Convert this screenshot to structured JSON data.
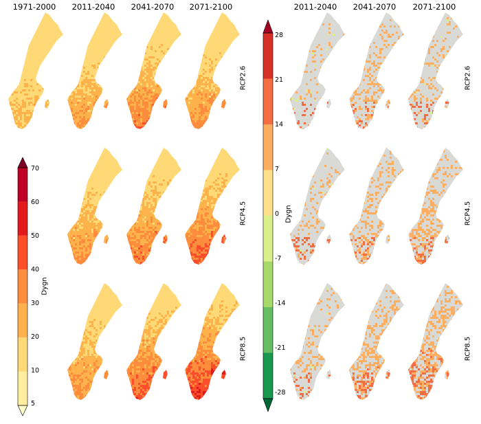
{
  "left_panel": {
    "column_titles": [
      "1971-2000",
      "2011-2040",
      "2041-2070",
      "2071-2100"
    ],
    "colorbar": {
      "label": "Dygn",
      "ticks": [
        "70",
        "60",
        "50",
        "40",
        "30",
        "20",
        "10",
        "5"
      ],
      "colors": [
        "#ffffcc",
        "#ffeda0",
        "#fed976",
        "#feb24c",
        "#fd8d3c",
        "#fc4e2a",
        "#e31a1c",
        "#bd0026",
        "#800026"
      ]
    }
  },
  "right_panel": {
    "column_titles": [
      "2011-2040",
      "2041-2070",
      "2071-2100"
    ],
    "colorbar": {
      "label": "Dygn",
      "ticks": [
        "28",
        "21",
        "14",
        "7",
        "0",
        "-7",
        "-14",
        "-21",
        "-28"
      ],
      "colors": [
        "#006837",
        "#1a9850",
        "#66bd63",
        "#a6d96a",
        "#d9ef8b",
        "#fee08b",
        "#fdae61",
        "#f46d43",
        "#d73027",
        "#a50026"
      ]
    }
  },
  "row_labels": [
    "RCP2.6",
    "RCP4.5",
    "RCP8.5"
  ]
}
